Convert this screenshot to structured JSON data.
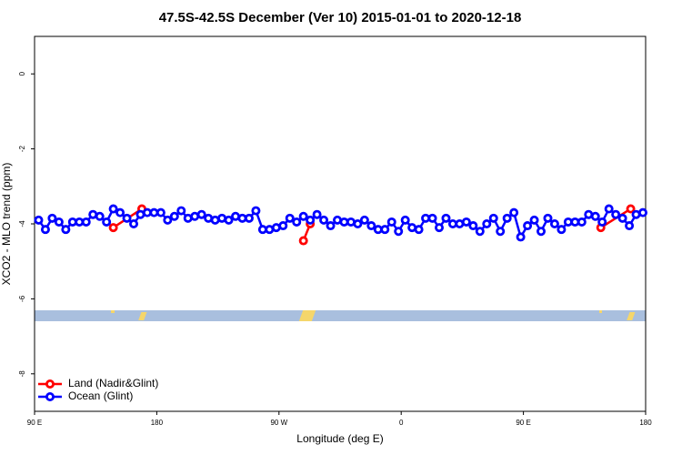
{
  "chart_data": {
    "type": "line",
    "title": "47.5S-42.5S December (Ver 10)   2015-01-01 to 2020-12-18",
    "x_label": "Longitude (deg E)",
    "y_label": "XCO2 - MLO trend (ppm)",
    "xlim": [
      90,
      540
    ],
    "ylim": [
      -9,
      1
    ],
    "xticks": [
      {
        "value": 90,
        "label": "90 E"
      },
      {
        "value": 180,
        "label": "180"
      },
      {
        "value": 270,
        "label": "90 W"
      },
      {
        "value": 360,
        "label": "0"
      },
      {
        "value": 450,
        "label": "90 E"
      },
      {
        "value": 540,
        "label": "180"
      }
    ],
    "yticks": [
      0,
      -2,
      -4,
      -6,
      -8
    ],
    "legend": "bottom-left",
    "series": [
      {
        "name": "Land (Nadir&Glint)",
        "color": "#ff0000",
        "x": [
          148,
          169,
          288,
          293,
          507,
          529
        ],
        "values": [
          -4.1,
          -3.6,
          -4.45,
          -4.0,
          -4.1,
          -3.6
        ]
      },
      {
        "name": "Ocean (Glint)",
        "color": "#0000ff",
        "x": [
          93,
          98,
          103,
          108,
          113,
          118,
          123,
          128,
          133,
          138,
          143,
          148,
          153,
          158,
          163,
          168,
          173,
          178,
          183,
          188,
          193,
          198,
          203,
          208,
          213,
          218,
          223,
          228,
          233,
          238,
          243,
          248,
          253,
          258,
          263,
          268,
          273,
          278,
          283,
          288,
          293,
          298,
          303,
          308,
          313,
          318,
          323,
          328,
          333,
          338,
          343,
          348,
          353,
          358,
          363,
          368,
          373,
          378,
          383,
          388,
          393,
          398,
          403,
          408,
          413,
          418,
          423,
          428,
          433,
          438,
          443,
          448,
          453,
          458,
          463,
          468,
          473,
          478,
          483,
          488,
          493,
          498,
          503,
          508,
          513,
          518,
          523,
          528,
          533,
          538
        ],
        "values": [
          -3.9,
          -4.15,
          -3.85,
          -3.95,
          -4.15,
          -3.95,
          -3.95,
          -3.95,
          -3.75,
          -3.8,
          -3.95,
          -3.6,
          -3.7,
          -3.85,
          -4.0,
          -3.75,
          -3.7,
          -3.7,
          -3.7,
          -3.9,
          -3.8,
          -3.65,
          -3.85,
          -3.8,
          -3.75,
          -3.85,
          -3.9,
          -3.85,
          -3.9,
          -3.8,
          -3.85,
          -3.85,
          -3.65,
          -4.15,
          -4.15,
          -4.1,
          -4.05,
          -3.85,
          -3.95,
          -3.8,
          -3.9,
          -3.75,
          -3.9,
          -4.05,
          -3.9,
          -3.95,
          -3.95,
          -4.0,
          -3.9,
          -4.05,
          -4.15,
          -4.15,
          -3.95,
          -4.2,
          -3.9,
          -4.1,
          -4.15,
          -3.85,
          -3.85,
          -4.1,
          -3.85,
          -4.0,
          -4.0,
          -3.95,
          -4.05,
          -4.2,
          -4.0,
          -3.85,
          -4.2,
          -3.85,
          -3.7,
          -4.35,
          -4.05,
          -3.9,
          -4.2,
          -3.85,
          -4.0,
          -4.15,
          -3.95,
          -3.95,
          -3.95,
          -3.75,
          -3.8,
          -3.95,
          -3.6,
          -3.75,
          -3.85,
          -4.05,
          -3.75,
          -3.7
        ]
      }
    ]
  }
}
